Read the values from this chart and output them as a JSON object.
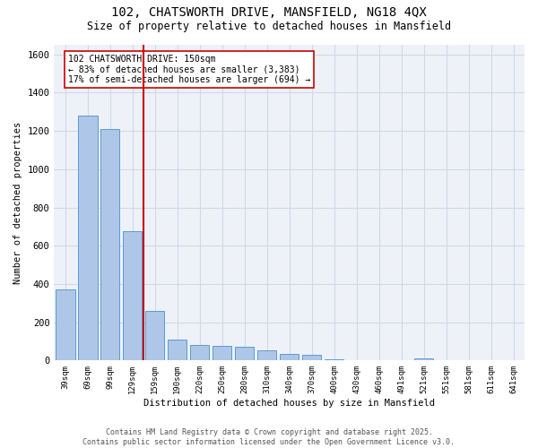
{
  "title_line1": "102, CHATSWORTH DRIVE, MANSFIELD, NG18 4QX",
  "title_line2": "Size of property relative to detached houses in Mansfield",
  "xlabel": "Distribution of detached houses by size in Mansfield",
  "ylabel": "Number of detached properties",
  "categories": [
    "39sqm",
    "69sqm",
    "99sqm",
    "129sqm",
    "159sqm",
    "190sqm",
    "220sqm",
    "250sqm",
    "280sqm",
    "310sqm",
    "340sqm",
    "370sqm",
    "400sqm",
    "430sqm",
    "460sqm",
    "491sqm",
    "521sqm",
    "551sqm",
    "581sqm",
    "611sqm",
    "641sqm"
  ],
  "values": [
    370,
    1280,
    1210,
    675,
    260,
    110,
    82,
    77,
    70,
    55,
    35,
    30,
    8,
    0,
    0,
    0,
    12,
    0,
    0,
    0,
    0
  ],
  "bar_color": "#aec6e8",
  "bar_edge_color": "#5b9bd5",
  "grid_color": "#d0d8e8",
  "bg_color": "#eef2f8",
  "vline_color": "#cc0000",
  "vline_pos": 3.5,
  "annotation_text": "102 CHATSWORTH DRIVE: 150sqm\n← 83% of detached houses are smaller (3,383)\n17% of semi-detached houses are larger (694) →",
  "annotation_box_color": "#cc0000",
  "footer_text": "Contains HM Land Registry data © Crown copyright and database right 2025.\nContains public sector information licensed under the Open Government Licence v3.0.",
  "ylim": [
    0,
    1650
  ],
  "yticks": [
    0,
    200,
    400,
    600,
    800,
    1000,
    1200,
    1400,
    1600
  ]
}
